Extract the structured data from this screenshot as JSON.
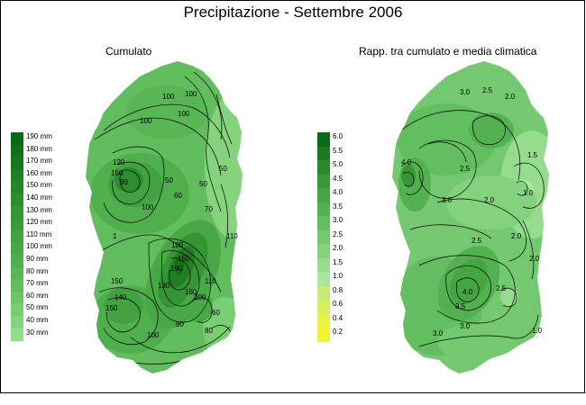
{
  "title": "Precipitazione - Settembre 2006",
  "maps": {
    "left": {
      "title": "Cumulato",
      "legend": [
        {
          "label": "190 mm",
          "color": "#0c6a16"
        },
        {
          "label": "180 mm",
          "color": "#127019"
        },
        {
          "label": "170 mm",
          "color": "#18781e"
        },
        {
          "label": "160 mm",
          "color": "#1f8023"
        },
        {
          "label": "150 mm",
          "color": "#268728"
        },
        {
          "label": "140 mm",
          "color": "#2c8f2d"
        },
        {
          "label": "130 mm",
          "color": "#339633"
        },
        {
          "label": "120 mm",
          "color": "#3a9c39"
        },
        {
          "label": "110 mm",
          "color": "#41a23f"
        },
        {
          "label": "100 mm",
          "color": "#48a846"
        },
        {
          "label": "90 mm",
          "color": "#50af4d"
        },
        {
          "label": "80 mm",
          "color": "#59b655"
        },
        {
          "label": "70 mm",
          "color": "#62bd5e"
        },
        {
          "label": "60 mm",
          "color": "#6dc568"
        },
        {
          "label": "50 mm",
          "color": "#79cd72"
        },
        {
          "label": "40 mm",
          "color": "#85d47d"
        },
        {
          "label": "30 mm",
          "color": "#93dc8a"
        }
      ],
      "contour_labels": [
        "100",
        "100",
        "100",
        "100",
        "50",
        "50",
        "50",
        "120",
        "150",
        "80",
        "60",
        "70",
        "110",
        "100",
        "100",
        "150",
        "190",
        "130",
        "150",
        "110",
        "150",
        "140",
        "150",
        "200",
        "90",
        "60",
        "80",
        "100",
        "1"
      ]
    },
    "right": {
      "title": "Rapp. tra cumulato e media climatica",
      "legend": [
        {
          "label": "6.0",
          "color": "#0c6a16"
        },
        {
          "label": "5.5",
          "color": "#1a7a1f"
        },
        {
          "label": "5.0",
          "color": "#298a2b"
        },
        {
          "label": "4.5",
          "color": "#369836"
        },
        {
          "label": "4.0",
          "color": "#44a641"
        },
        {
          "label": "3.5",
          "color": "#53b24f"
        },
        {
          "label": "3.0",
          "color": "#63be5f"
        },
        {
          "label": "2.5",
          "color": "#74c86f"
        },
        {
          "label": "2.0",
          "color": "#84d27e"
        },
        {
          "label": "1.5",
          "color": "#96dc8e"
        },
        {
          "label": "1.0",
          "color": "#a8e79e"
        },
        {
          "label": "0.8",
          "color": "#c4ec77"
        },
        {
          "label": "0.6",
          "color": "#d6ef5c"
        },
        {
          "label": "0.4",
          "color": "#e6f244"
        },
        {
          "label": "0.2",
          "color": "#f3f430"
        }
      ],
      "contour_labels": [
        "3.0",
        "2.5",
        "2.0",
        "1.5",
        "4.0",
        "2.5",
        "2.0",
        "1.0",
        "3.0",
        "2.0",
        "2.5",
        "3.0",
        "2.0",
        "4.0",
        "3.5",
        "2.5",
        "3.0",
        "1.0"
      ]
    }
  }
}
